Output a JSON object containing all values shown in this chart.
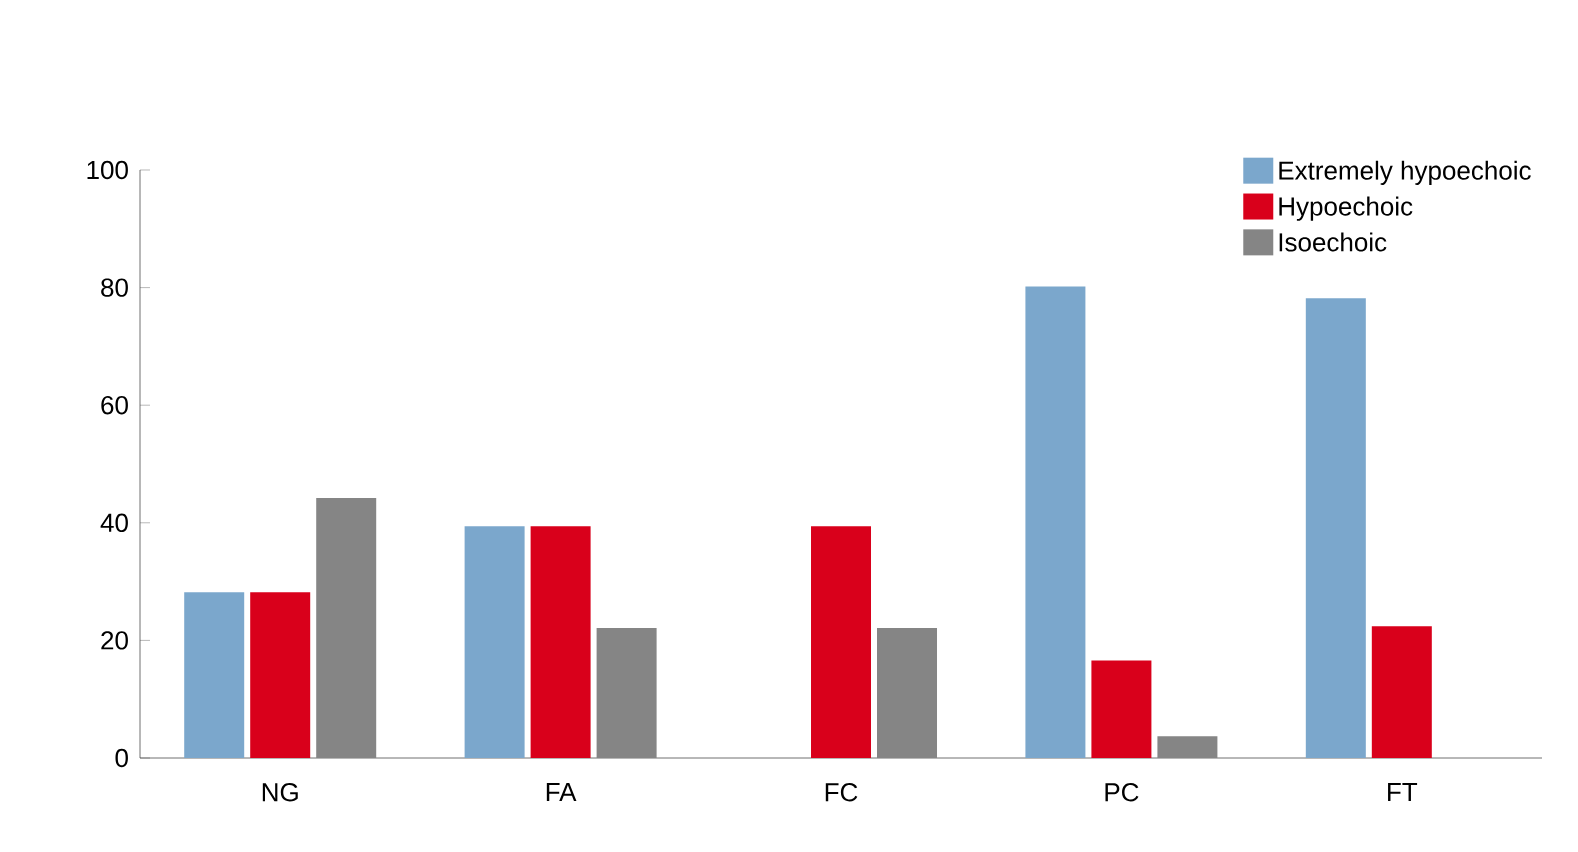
{
  "chart_data": {
    "type": "bar",
    "categories": [
      "NG",
      "FA",
      "FC",
      "PC",
      "FT"
    ],
    "series": [
      {
        "name": "Extremely hypoechoic",
        "color": "#7ba7cc",
        "values": [
          28.2,
          39.4,
          0,
          80.2,
          78.2
        ]
      },
      {
        "name": "Hypoechoic",
        "color": "#d9001b",
        "values": [
          28.2,
          39.4,
          39.4,
          16.6,
          22.4
        ]
      },
      {
        "name": "Isoechoic",
        "color": "#858585",
        "values": [
          44.2,
          22.1,
          22.1,
          3.7,
          0
        ]
      }
    ],
    "ylim": [
      0,
      100
    ],
    "yticks": [
      0,
      20,
      40,
      60,
      80,
      100
    ],
    "grid": false,
    "legend": "top right"
  }
}
